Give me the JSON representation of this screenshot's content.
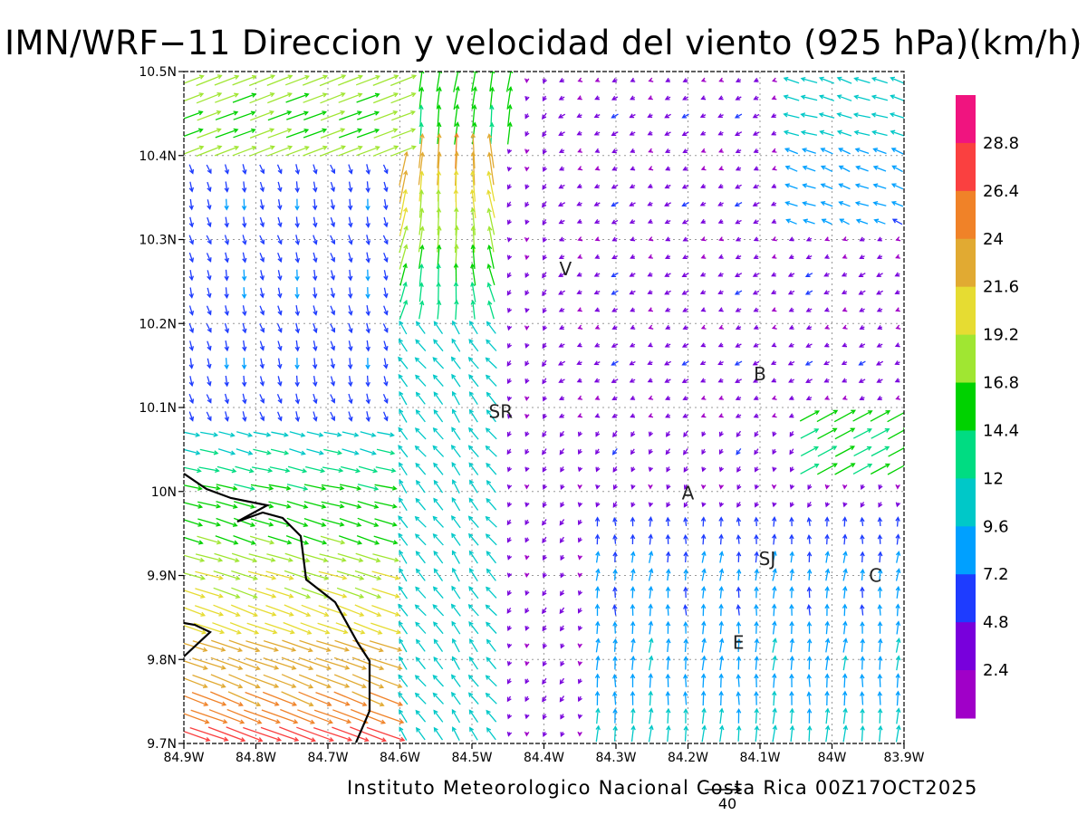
{
  "title": "IMN/WRF−11 Direccion y velocidad del viento (925 hPa)(km/h)",
  "credit": "Instituto Meteorologico Nacional Costa Rica 00Z17OCT2025",
  "reference_vector": {
    "value": "40"
  },
  "axes": {
    "lon_ticks": [
      "84.9W",
      "84.8W",
      "84.7W",
      "84.6W",
      "84.5W",
      "84.4W",
      "84.3W",
      "84.2W",
      "84.1W",
      "84W",
      "83.9W"
    ],
    "lat_ticks": [
      "10.5N",
      "10.4N",
      "10.3N",
      "10.2N",
      "10.1N",
      "10N",
      "9.9N",
      "9.8N",
      "9.7N"
    ],
    "lon_range": [
      -84.9,
      -83.9
    ],
    "lat_range": [
      9.7,
      10.5
    ],
    "grid": "dotted"
  },
  "colorbar": {
    "labels": [
      "28.8",
      "26.4",
      "24",
      "21.6",
      "19.2",
      "16.8",
      "14.4",
      "12",
      "9.6",
      "7.2",
      "4.8",
      "2.4"
    ],
    "colors": [
      "#f0147f",
      "#fa4040",
      "#f08228",
      "#e1aa32",
      "#e6dc32",
      "#a0e632",
      "#00d200",
      "#00dc82",
      "#00c8c8",
      "#00a0ff",
      "#1e3cff",
      "#7800dc",
      "#a000c8"
    ]
  },
  "stations": [
    {
      "label": "V",
      "lon": -84.37,
      "lat": 10.265
    },
    {
      "label": "B",
      "lon": -84.1,
      "lat": 10.14
    },
    {
      "label": "SR",
      "lon": -84.46,
      "lat": 10.095
    },
    {
      "label": "A",
      "lon": -84.2,
      "lat": 9.998
    },
    {
      "label": "SJ",
      "lon": -84.09,
      "lat": 9.92
    },
    {
      "label": "C",
      "lon": -83.94,
      "lat": 9.9
    },
    {
      "label": "E",
      "lon": -84.13,
      "lat": 9.82
    }
  ]
}
